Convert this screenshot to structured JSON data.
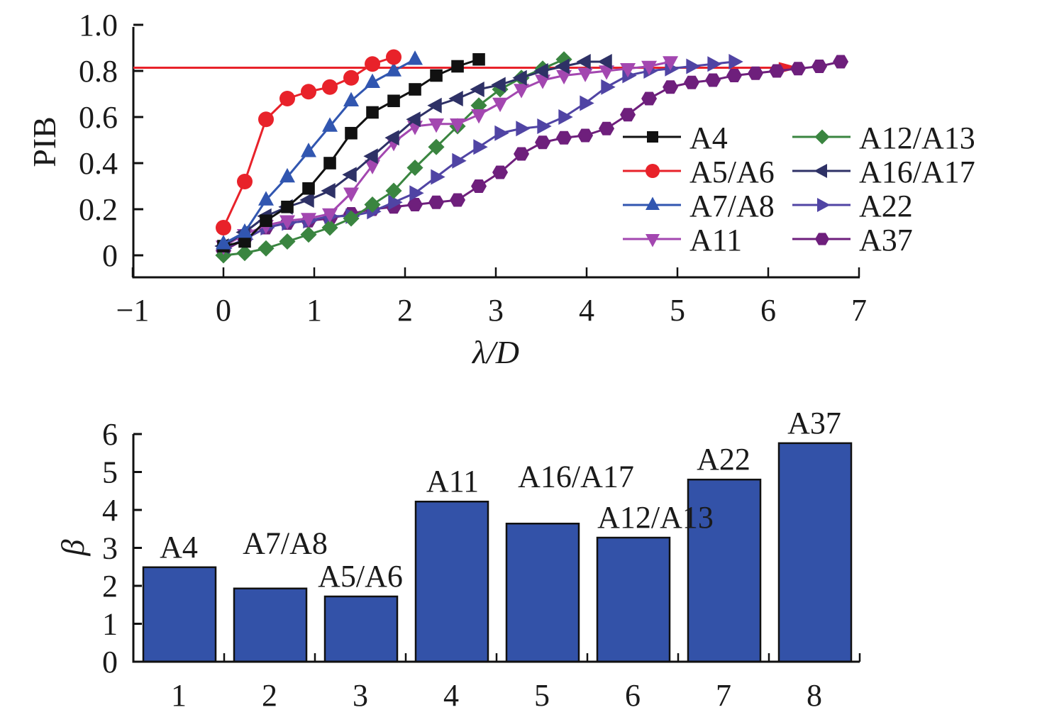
{
  "chart_data": [
    {
      "type": "line",
      "title": "",
      "xlabel": "λ/D",
      "ylabel": "PIB",
      "xlim": [
        -1,
        7
      ],
      "ylim": [
        -0.1,
        1.0
      ],
      "xticks": [
        "−1",
        "0",
        "1",
        "2",
        "3",
        "4",
        "5",
        "6",
        "7"
      ],
      "xtick_values": [
        -1,
        0,
        1,
        2,
        3,
        4,
        5,
        6,
        7
      ],
      "yticks": [
        "0",
        "0.2",
        "0.4",
        "0.6",
        "0.8",
        "1.0"
      ],
      "ytick_values": [
        0,
        0.2,
        0.4,
        0.6,
        0.8,
        1.0
      ],
      "x_step": 0.2344,
      "grid": false,
      "legend_placement": "center-right",
      "reference_line": {
        "y": 0.814,
        "x_start": -1,
        "x_end": 6.35,
        "color": "#e8222a",
        "arrow": true
      },
      "series": [
        {
          "name": "A4",
          "marker": "square",
          "color": "#111111",
          "values": [
            0.04,
            0.06,
            0.15,
            0.21,
            0.29,
            0.4,
            0.53,
            0.62,
            0.67,
            0.72,
            0.78,
            0.82,
            0.85
          ]
        },
        {
          "name": "A5/A6",
          "marker": "circle",
          "color": "#e8222a",
          "values": [
            0.12,
            0.32,
            0.59,
            0.68,
            0.71,
            0.73,
            0.77,
            0.83,
            0.86
          ]
        },
        {
          "name": "A7/A8",
          "marker": "triangle-up",
          "color": "#3156b0",
          "values": [
            0.05,
            0.1,
            0.24,
            0.34,
            0.45,
            0.56,
            0.67,
            0.75,
            0.8,
            0.85
          ]
        },
        {
          "name": "A11",
          "marker": "triangle-down",
          "color": "#a347b0",
          "values": [
            0.04,
            0.09,
            0.13,
            0.15,
            0.16,
            0.18,
            0.27,
            0.39,
            0.49,
            0.56,
            0.57,
            0.57,
            0.61,
            0.66,
            0.72,
            0.76,
            0.78,
            0.79,
            0.8,
            0.81,
            0.82,
            0.84
          ]
        },
        {
          "name": "A12/A13",
          "marker": "diamond",
          "color": "#3a8540",
          "values": [
            0.0,
            0.01,
            0.03,
            0.06,
            0.09,
            0.12,
            0.16,
            0.22,
            0.28,
            0.38,
            0.47,
            0.56,
            0.65,
            0.72,
            0.77,
            0.81,
            0.85
          ]
        },
        {
          "name": "A16/A17",
          "marker": "triangle-left",
          "color": "#2e3166",
          "values": [
            0.04,
            0.1,
            0.17,
            0.21,
            0.24,
            0.28,
            0.35,
            0.43,
            0.51,
            0.59,
            0.65,
            0.68,
            0.72,
            0.74,
            0.77,
            0.8,
            0.82,
            0.84,
            0.84
          ]
        },
        {
          "name": "A22",
          "marker": "triangle-right",
          "color": "#5044a4",
          "values": [
            0.03,
            0.07,
            0.12,
            0.14,
            0.15,
            0.17,
            0.17,
            0.19,
            0.23,
            0.27,
            0.34,
            0.41,
            0.47,
            0.53,
            0.55,
            0.56,
            0.6,
            0.66,
            0.73,
            0.78,
            0.8,
            0.81,
            0.82,
            0.83,
            0.84
          ]
        },
        {
          "name": "A37",
          "marker": "hexagon",
          "color": "#6e1f7c",
          "values": [
            0.02,
            0.07,
            0.12,
            0.14,
            0.15,
            0.16,
            0.18,
            0.2,
            0.21,
            0.22,
            0.23,
            0.24,
            0.3,
            0.36,
            0.44,
            0.49,
            0.51,
            0.52,
            0.55,
            0.61,
            0.68,
            0.73,
            0.75,
            0.76,
            0.78,
            0.79,
            0.8,
            0.81,
            0.82,
            0.84
          ]
        }
      ]
    },
    {
      "type": "bar",
      "title": "",
      "xlabel": "",
      "ylabel": "β",
      "ylim": [
        0,
        6
      ],
      "yticks": [
        "0",
        "1",
        "2",
        "3",
        "4",
        "5",
        "6"
      ],
      "ytick_values": [
        0,
        1,
        2,
        3,
        4,
        5,
        6
      ],
      "categories": [
        "1",
        "2",
        "3",
        "4",
        "5",
        "6",
        "7",
        "8"
      ],
      "values": [
        2.49,
        1.93,
        1.72,
        4.22,
        3.64,
        3.27,
        4.8,
        5.76
      ],
      "bar_labels": [
        "A4",
        "A7/A8",
        "A5/A6",
        "A11",
        "A16/A17",
        "A12/A13",
        "A22",
        "A37"
      ],
      "bar_color": "#3352a8",
      "grid": false
    }
  ]
}
